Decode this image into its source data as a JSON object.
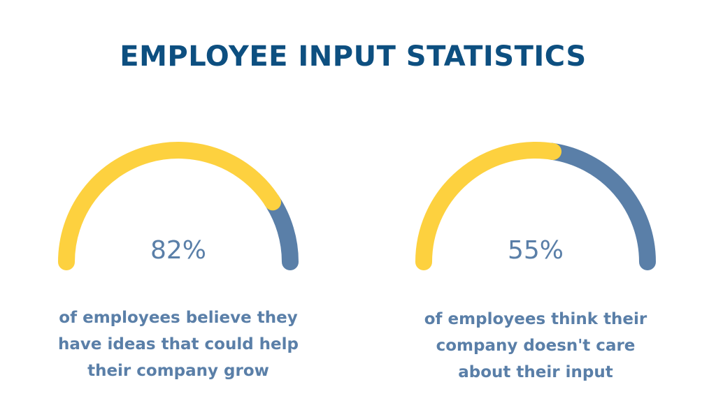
{
  "header": {
    "title": "EMPLOYEE INPUT STATISTICS"
  },
  "colors": {
    "title": "#0d4f80",
    "fill": "#fdd13f",
    "remainder": "#5a7fa8",
    "text": "#5a7fa8",
    "background": "#ffffff"
  },
  "chart_data": [
    {
      "type": "gauge",
      "value": 82,
      "max": 100,
      "label": "82%",
      "caption": "of employees believe they have ideas that could help their company grow"
    },
    {
      "type": "gauge",
      "value": 55,
      "max": 100,
      "label": "55%",
      "caption": "of employees think their company doesn't care about their input"
    }
  ]
}
